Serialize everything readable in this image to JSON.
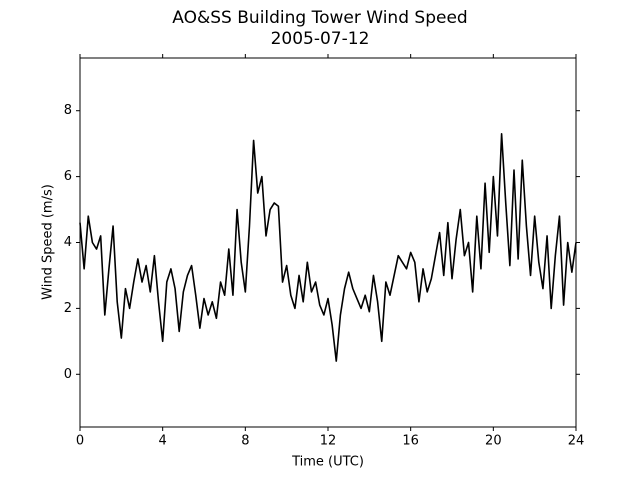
{
  "chart_data": {
    "type": "line",
    "title": "AO&SS Building Tower Wind Speed",
    "subtitle": "2005-07-12",
    "xlabel": "Time (UTC)",
    "ylabel": "Wind Speed (m/s)",
    "color": "#000000",
    "xlim": [
      0,
      24
    ],
    "xticks": [
      0,
      4,
      8,
      12,
      16,
      20,
      24
    ],
    "ylim": [
      -1.6,
      9.6
    ],
    "yticks": [
      0,
      2,
      4,
      6,
      8
    ],
    "x": [
      0,
      0.2,
      0.4,
      0.6,
      0.8,
      1,
      1.2,
      1.4,
      1.6,
      1.8,
      2,
      2.2,
      2.4,
      2.6,
      2.8,
      3,
      3.2,
      3.4,
      3.6,
      3.8,
      4,
      4.2,
      4.4,
      4.6,
      4.8,
      5,
      5.2,
      5.4,
      5.6,
      5.8,
      6,
      6.2,
      6.4,
      6.6,
      6.8,
      7,
      7.2,
      7.4,
      7.6,
      7.8,
      8,
      8.2,
      8.4,
      8.6,
      8.8,
      9,
      9.2,
      9.4,
      9.6,
      9.8,
      10,
      10.2,
      10.4,
      10.6,
      10.8,
      11,
      11.2,
      11.4,
      11.6,
      11.8,
      12,
      12.2,
      12.4,
      12.6,
      12.8,
      13,
      13.2,
      13.4,
      13.6,
      13.8,
      14,
      14.2,
      14.4,
      14.6,
      14.8,
      15,
      15.2,
      15.4,
      15.6,
      15.8,
      16,
      16.2,
      16.4,
      16.6,
      16.8,
      17,
      17.2,
      17.4,
      17.6,
      17.8,
      18,
      18.2,
      18.4,
      18.6,
      18.8,
      19,
      19.2,
      19.4,
      19.6,
      19.8,
      20,
      20.2,
      20.4,
      20.6,
      20.8,
      21,
      21.2,
      21.4,
      21.6,
      21.8,
      22,
      22.2,
      22.4,
      22.6,
      22.8,
      23,
      23.2,
      23.4,
      23.6,
      23.8,
      24
    ],
    "values": [
      4.6,
      3.2,
      4.8,
      4.0,
      3.8,
      4.2,
      1.8,
      3.2,
      4.5,
      2.2,
      1.1,
      2.6,
      2.0,
      2.8,
      3.5,
      2.8,
      3.3,
      2.5,
      3.6,
      2.2,
      1.0,
      2.8,
      3.2,
      2.6,
      1.3,
      2.5,
      3.0,
      3.3,
      2.4,
      1.4,
      2.3,
      1.8,
      2.2,
      1.7,
      2.8,
      2.4,
      3.8,
      2.4,
      5.0,
      3.4,
      2.5,
      4.5,
      7.1,
      5.5,
      6.0,
      4.2,
      5.0,
      5.2,
      5.1,
      2.8,
      3.3,
      2.4,
      2.0,
      3.0,
      2.2,
      3.4,
      2.5,
      2.8,
      2.1,
      1.8,
      2.3,
      1.5,
      0.4,
      1.8,
      2.6,
      3.1,
      2.6,
      2.3,
      2.0,
      2.4,
      1.9,
      3.0,
      2.2,
      1.0,
      2.8,
      2.4,
      3.0,
      3.6,
      3.4,
      3.2,
      3.7,
      3.4,
      2.2,
      3.2,
      2.5,
      2.9,
      3.6,
      4.3,
      3.0,
      4.6,
      2.9,
      4.1,
      5.0,
      3.6,
      4.0,
      2.5,
      4.8,
      3.2,
      5.8,
      3.7,
      6.0,
      4.2,
      7.3,
      5.2,
      3.3,
      6.2,
      3.5,
      6.5,
      4.5,
      3.0,
      4.8,
      3.4,
      2.6,
      4.2,
      2.0,
      3.6,
      4.8,
      2.1,
      4.0,
      3.1,
      4.0
    ]
  }
}
